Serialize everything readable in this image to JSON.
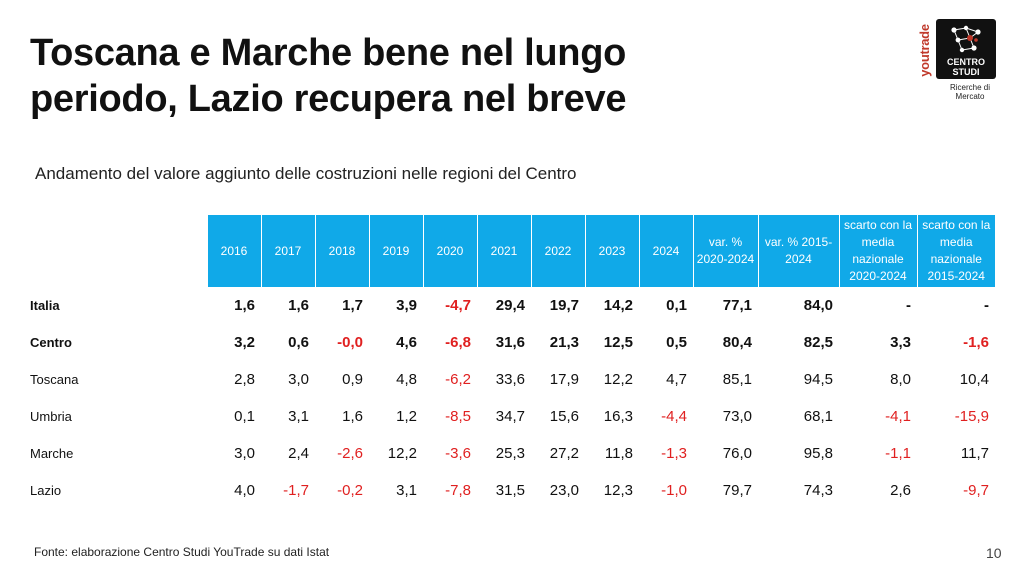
{
  "title": {
    "line1": "Toscana e Marche bene nel lungo",
    "line2": "periodo, Lazio recupera nel breve"
  },
  "subtitle": "Andamento del valore aggiunto delle costruzioni nelle regioni del Centro",
  "logo": {
    "side_text": "youtrade",
    "name_line1": "CENTRO",
    "name_line2": "STUDI",
    "caption": "Ricerche di Mercato"
  },
  "table": {
    "columns": [
      "2016",
      "2017",
      "2018",
      "2019",
      "2020",
      "2021",
      "2022",
      "2023",
      "2024",
      "var. % 2020-2024",
      "var. % 2015-2024",
      "scarto con la media nazionale 2020-2024",
      "scarto con la media nazionale 2015-2024"
    ],
    "rows": [
      {
        "label": "Italia",
        "bold": true,
        "values": [
          "1,6",
          "1,6",
          "1,7",
          "3,9",
          "-4,7",
          "29,4",
          "19,7",
          "14,2",
          "0,1",
          "77,1",
          "84,0",
          "-",
          "-"
        ]
      },
      {
        "label": "Centro",
        "bold": true,
        "values": [
          "3,2",
          "0,6",
          "-0,0",
          "4,6",
          "-6,8",
          "31,6",
          "21,3",
          "12,5",
          "0,5",
          "80,4",
          "82,5",
          "3,3",
          "-1,6"
        ]
      },
      {
        "label": "Toscana",
        "bold": false,
        "values": [
          "2,8",
          "3,0",
          "0,9",
          "4,8",
          "-6,2",
          "33,6",
          "17,9",
          "12,2",
          "4,7",
          "85,1",
          "94,5",
          "8,0",
          "10,4"
        ]
      },
      {
        "label": "Umbria",
        "bold": false,
        "values": [
          "0,1",
          "3,1",
          "1,6",
          "1,2",
          "-8,5",
          "34,7",
          "15,6",
          "16,3",
          "-4,4",
          "73,0",
          "68,1",
          "-4,1",
          "-15,9"
        ]
      },
      {
        "label": "Marche",
        "bold": false,
        "values": [
          "3,0",
          "2,4",
          "-2,6",
          "12,2",
          "-3,6",
          "25,3",
          "27,2",
          "11,8",
          "-1,3",
          "76,0",
          "95,8",
          "-1,1",
          "11,7"
        ]
      },
      {
        "label": "Lazio",
        "bold": false,
        "values": [
          "4,0",
          "-1,7",
          "-0,2",
          "3,1",
          "-7,8",
          "31,5",
          "23,0",
          "12,3",
          "-1,0",
          "79,7",
          "74,3",
          "2,6",
          "-9,7"
        ]
      }
    ]
  },
  "colors": {
    "header_bg": "#10a9e8",
    "negative": "#e02020",
    "logo_red": "#c0392b"
  },
  "footer": "Fonte: elaborazione Centro Studi YouTrade su dati Istat",
  "page_number": "10"
}
